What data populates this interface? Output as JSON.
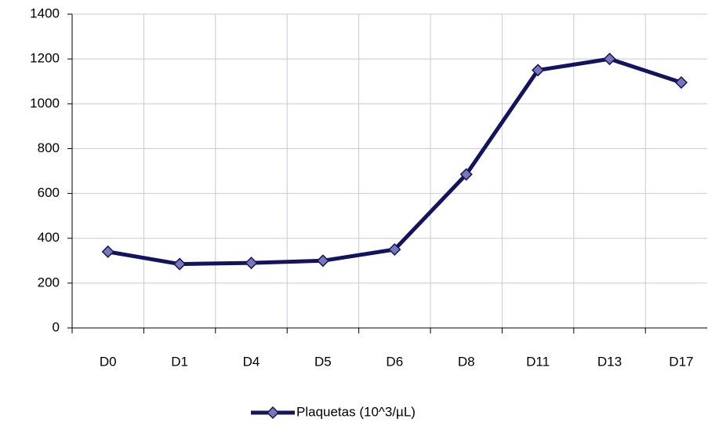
{
  "chart_data": {
    "type": "line",
    "categories": [
      "D0",
      "D1",
      "D4",
      "D5",
      "D6",
      "D8",
      "D11",
      "D13",
      "D17"
    ],
    "series": [
      {
        "name": "Plaquetas (10^3/µL)",
        "color": "#14145a",
        "marker_color": "#7878b8",
        "values": [
          340,
          285,
          290,
          300,
          350,
          685,
          1150,
          1200,
          1095
        ]
      }
    ],
    "ylim": [
      0,
      1400
    ],
    "yticks": [
      0,
      200,
      400,
      600,
      800,
      1000,
      1200,
      1400
    ],
    "grid": true,
    "legend": "bottom"
  }
}
